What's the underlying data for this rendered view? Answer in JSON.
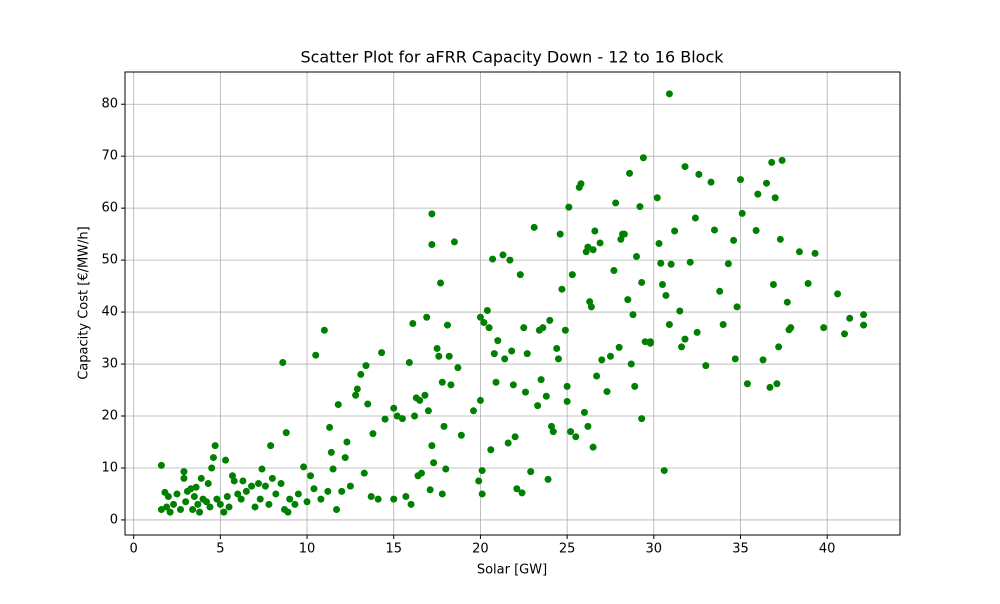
{
  "chart_data": {
    "type": "scatter",
    "title": "Scatter Plot for aFRR Capacity Down - 12 to 16 Block",
    "x_label": "Solar [GW]",
    "y_label": "Capacity Cost [€/MW/h]",
    "color": "#008000",
    "grid": true,
    "xlim": [
      -0.5,
      44.2
    ],
    "ylim": [
      -2.9,
      86.2
    ],
    "xticks": [
      0,
      5,
      10,
      15,
      20,
      25,
      30,
      35,
      40
    ],
    "yticks": [
      0,
      10,
      20,
      30,
      40,
      50,
      60,
      70,
      80
    ],
    "x": [
      1.6,
      1.6,
      1.8,
      1.9,
      2,
      2.1,
      2.3,
      2.5,
      2.7,
      2.9,
      2.9,
      3,
      3.1,
      3.3,
      3.4,
      3.5,
      3.6,
      3.7,
      3.8,
      3.9,
      4,
      4.2,
      4.3,
      4.4,
      4.5,
      4.6,
      4.7,
      4.8,
      5,
      5.2,
      5.3,
      5.4,
      5.5,
      5.7,
      5.8,
      6,
      6.2,
      6.3,
      6.5,
      6.8,
      7,
      7.2,
      7.3,
      7.4,
      7.6,
      7.8,
      7.9,
      8,
      8.2,
      8.5,
      8.6,
      8.7,
      8.8,
      8.9,
      9,
      9.3,
      9.5,
      9.8,
      10,
      10.2,
      10.4,
      10.5,
      10.8,
      11,
      11.2,
      11.3,
      11.4,
      11.5,
      11.7,
      11.8,
      12,
      12.2,
      12.3,
      12.5,
      12.8,
      12.9,
      13.1,
      13.3,
      13.4,
      13.5,
      13.7,
      13.8,
      14.1,
      14.3,
      14.5,
      15,
      15,
      15.2,
      15.5,
      15.7,
      15.9,
      16,
      16.1,
      16.2,
      16.3,
      16.4,
      16.5,
      16.6,
      16.8,
      16.9,
      17,
      17.1,
      17.2,
      17.2,
      17.2,
      17.3,
      17.5,
      17.6,
      17.7,
      17.8,
      17.9,
      18,
      18.1,
      18.2,
      18.3,
      18.5,
      18.7,
      18.9,
      17.8,
      19.6,
      19.9,
      20,
      20,
      20.1,
      20.1,
      20.2,
      20.4,
      20.5,
      20.6,
      20.7,
      20.8,
      20.9,
      21,
      21.3,
      21.4,
      21.6,
      21.7,
      21.8,
      21.9,
      22,
      22.1,
      22.3,
      22.4,
      22.5,
      22.6,
      22.7,
      22.9,
      23.1,
      23.3,
      23.4,
      23.5,
      23.6,
      23.8,
      23.9,
      24,
      24.1,
      24.2,
      24.4,
      24.5,
      24.6,
      24.7,
      24.9,
      25,
      25.1,
      25.2,
      25.5,
      25.7,
      25.8,
      26,
      26.1,
      26.2,
      26.3,
      26.4,
      26.5,
      26.6,
      26.7,
      26.9,
      27,
      27.3,
      27.5,
      27.7,
      27.8,
      28,
      28.1,
      28.3,
      28.5,
      28.6,
      28.7,
      28.8,
      28.9,
      29,
      29.2,
      29.3,
      29.4,
      29.5,
      29.8,
      30.2,
      30.3,
      30.4,
      30.5,
      30.6,
      30.7,
      30.9,
      31,
      31.2,
      31.5,
      31.6,
      31.8,
      32.1,
      32.4,
      32.5,
      32.6,
      33,
      33.3,
      33.5,
      33.8,
      34,
      34.3,
      34.6,
      34.7,
      34.8,
      35,
      35.1,
      35.4,
      35.9,
      36,
      36.3,
      36.5,
      36.7,
      36.8,
      36.9,
      37,
      37.1,
      37.2,
      37.3,
      37.4,
      37.7,
      37.8,
      37.9,
      38.4,
      38.9,
      39.3,
      39.8,
      40.6,
      41,
      41.3,
      42.1,
      42.1,
      25,
      25.3,
      26.2,
      26.5,
      28.2,
      29.3,
      29.8,
      30.9,
      31.8
    ],
    "y": [
      10.5,
      2,
      5.3,
      2.5,
      4.5,
      1.5,
      3,
      5,
      2,
      9.3,
      8,
      3.5,
      5.5,
      6,
      2,
      4.5,
      6.3,
      3,
      1.5,
      8,
      4,
      3.5,
      7,
      2.5,
      10,
      12,
      14.3,
      4,
      3,
      1.5,
      11.5,
      4.5,
      2.5,
      8.5,
      7.5,
      5,
      4,
      7.5,
      5.5,
      6.5,
      2.5,
      7,
      4,
      9.8,
      6.5,
      3,
      14.3,
      8,
      5,
      7,
      30.3,
      2,
      16.8,
      1.5,
      4,
      3,
      5,
      10.2,
      3.5,
      8.5,
      6,
      31.7,
      4,
      36.5,
      5.5,
      17.8,
      13,
      9.8,
      2,
      22.2,
      5.5,
      12,
      15,
      6.5,
      24,
      25.2,
      28,
      9,
      29.7,
      22.3,
      4.5,
      16.6,
      4,
      32.2,
      19.4,
      21.5,
      4,
      20,
      19.5,
      4.5,
      30.3,
      3,
      37.8,
      20,
      23.5,
      8.5,
      23,
      9,
      24,
      39,
      21,
      5.8,
      53,
      58.9,
      14.3,
      11,
      33,
      31.5,
      45.6,
      26.5,
      18,
      9.8,
      37.5,
      31.5,
      26,
      53.5,
      29.3,
      16.3,
      5,
      21,
      7.5,
      39,
      23,
      9.5,
      5,
      38,
      40.3,
      37,
      13.5,
      50.2,
      32,
      26.5,
      34.5,
      51,
      31,
      14.8,
      50,
      32.5,
      26,
      16,
      6,
      47.2,
      5.2,
      37,
      24.6,
      32,
      9.3,
      56.3,
      22,
      36.5,
      27,
      37,
      23.8,
      7.8,
      38.4,
      18,
      17,
      33,
      31,
      55,
      44.4,
      36.5,
      25.7,
      60.2,
      17,
      16,
      64,
      64.7,
      20.7,
      51.6,
      52.5,
      42,
      41,
      14,
      55.6,
      27.7,
      53.3,
      30.8,
      24.7,
      31.5,
      48,
      61,
      33.2,
      54,
      55,
      42.4,
      66.7,
      30,
      39.5,
      25.7,
      50.7,
      60.3,
      45.7,
      69.7,
      34.3,
      34.3,
      62,
      53.2,
      49.4,
      45.3,
      9.5,
      43.2,
      82,
      49.2,
      55.6,
      40.2,
      33.3,
      68,
      49.6,
      58.1,
      36.1,
      66.5,
      29.7,
      65,
      55.8,
      44,
      37.6,
      49.3,
      53.8,
      31,
      41,
      65.5,
      59,
      26.2,
      55.7,
      62.7,
      30.8,
      64.8,
      25.5,
      68.8,
      45.3,
      62,
      26.2,
      33.3,
      54,
      69.2,
      41.9,
      36.6,
      37,
      51.6,
      45.5,
      51.3,
      37,
      43.5,
      35.8,
      38.8,
      37.5,
      39.5,
      22.8,
      47.2,
      18,
      52,
      55,
      19.5,
      34,
      37.6,
      34.8
    ]
  }
}
